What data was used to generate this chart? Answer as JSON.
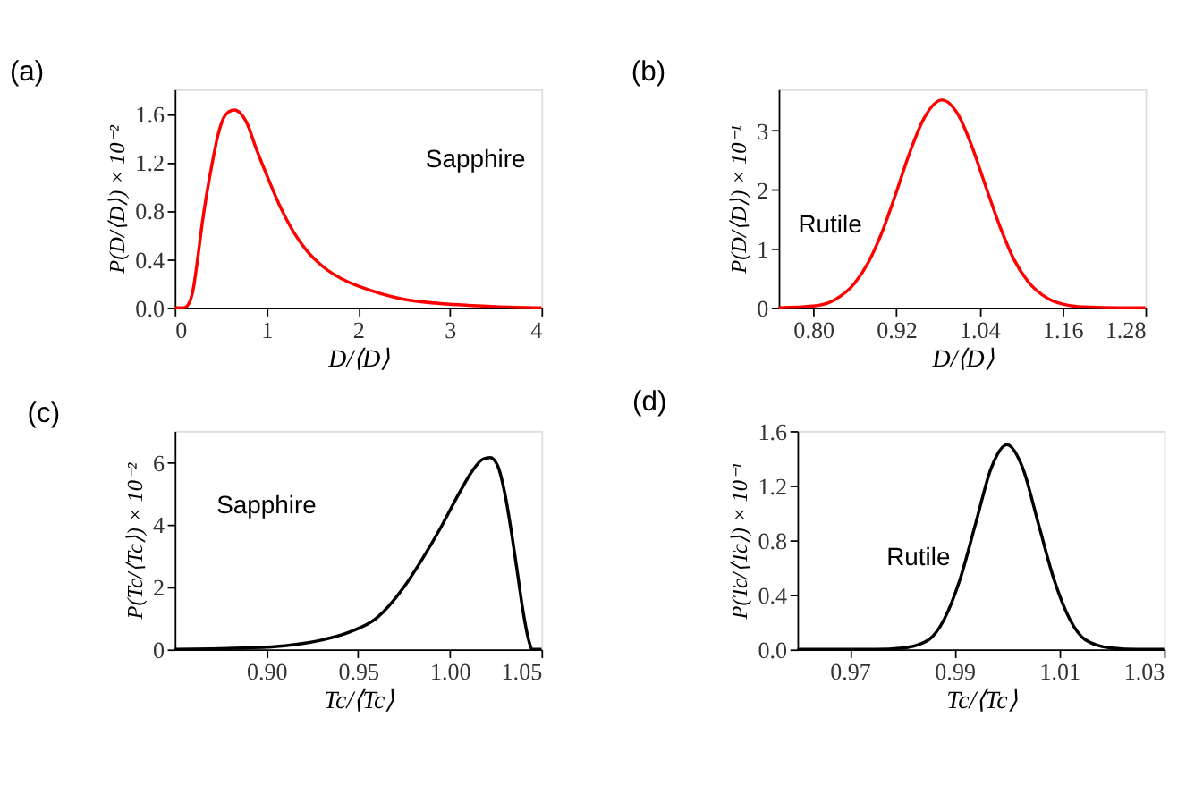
{
  "chart_data": [
    {
      "type": "line",
      "title": "(a)",
      "xlabel": "D/⟨D⟩",
      "ylabel": "P(D/⟨D⟩) × 10⁻²",
      "annotations": [
        "Sapphire"
      ],
      "xlim": [
        0,
        4
      ],
      "ylim": [
        0,
        1.8
      ],
      "xticks": [
        0,
        1,
        2,
        3,
        4
      ],
      "yticks": [
        {
          "value": 0,
          "label": "0.0"
        },
        0.4,
        0.8,
        1.2,
        1.6
      ],
      "grid": false,
      "series": [
        {
          "color": "#ff0000",
          "x": [
            0,
            0.1,
            0.15,
            0.2,
            0.24,
            0.3,
            0.34,
            0.41,
            0.47,
            0.53,
            0.6,
            0.65,
            0.72,
            0.8,
            0.87,
            1.0,
            1.14,
            1.3,
            1.43,
            1.6,
            1.9,
            2.0,
            2.5,
            3.0,
            3.5,
            4.0
          ],
          "values": [
            0,
            0,
            0.03,
            0.15,
            0.35,
            0.7,
            0.9,
            1.2,
            1.42,
            1.56,
            1.62,
            1.63,
            1.6,
            1.5,
            1.35,
            1.1,
            0.85,
            0.62,
            0.48,
            0.35,
            0.21,
            0.18,
            0.07,
            0.03,
            0.01,
            0
          ]
        }
      ]
    },
    {
      "type": "line",
      "title": "(b)",
      "xlabel": "D/⟨D⟩",
      "ylabel": "P(D/⟨D⟩) × 10⁻¹",
      "annotations": [
        "Rutile"
      ],
      "xlim": [
        0.75,
        1.28
      ],
      "ylim": [
        0,
        3.7
      ],
      "xticks": [
        {
          "value": 0.8,
          "label": "0.80"
        },
        0.92,
        1.04,
        1.16,
        1.28
      ],
      "yticks": [
        0,
        1,
        2,
        3
      ],
      "grid": false,
      "series": [
        {
          "color": "#ff0000",
          "x": [
            0.75,
            0.8,
            0.83,
            0.86,
            0.88,
            0.9,
            0.92,
            0.94,
            0.96,
            0.986,
            1.01,
            1.03,
            1.05,
            1.07,
            1.09,
            1.11,
            1.14,
            1.17,
            1.2,
            1.24,
            1.28
          ],
          "values": [
            0,
            0.03,
            0.13,
            0.42,
            0.78,
            1.3,
            1.96,
            2.65,
            3.21,
            3.52,
            3.26,
            2.71,
            2.03,
            1.37,
            0.82,
            0.45,
            0.15,
            0.04,
            0.01,
            0,
            0
          ]
        }
      ]
    },
    {
      "type": "line",
      "title": "(c)",
      "xlabel": "Tc/⟨Tc⟩",
      "ylabel": "P(Tc/⟨Tc⟩) × 10⁻²",
      "annotations": [
        "Sapphire"
      ],
      "xlim": [
        0.85,
        1.05
      ],
      "ylim": [
        0,
        7
      ],
      "xticks": [
        {
          "value": 0.9,
          "label": "0.90"
        },
        0.95,
        {
          "value": 1.0,
          "label": "1.00"
        },
        1.05
      ],
      "yticks": [
        0,
        2,
        4,
        6
      ],
      "grid": false,
      "series": [
        {
          "color": "#000000",
          "x": [
            0.85,
            0.87,
            0.89,
            0.91,
            0.93,
            0.945,
            0.96,
            0.975,
            0.985,
            0.995,
            1.005,
            1.012,
            1.018,
            1.022,
            1.026,
            1.03,
            1.034,
            1.037,
            1.04,
            1.043,
            1.045,
            1.05
          ],
          "values": [
            0,
            0.02,
            0.05,
            0.12,
            0.3,
            0.55,
            1.0,
            2.0,
            2.9,
            3.9,
            5.0,
            5.7,
            6.1,
            6.15,
            5.9,
            5.0,
            3.6,
            2.4,
            1.2,
            0.3,
            0,
            0
          ]
        }
      ]
    },
    {
      "type": "line",
      "title": "(d)",
      "xlabel": "Tc/⟨Tc⟩",
      "ylabel": "P(Tc/⟨Tc⟩) × 10⁻¹",
      "annotations": [
        "Rutile"
      ],
      "xlim": [
        0.96,
        1.03
      ],
      "ylim": [
        0,
        1.6
      ],
      "xticks": [
        0.97,
        0.99,
        1.01,
        1.03
      ],
      "yticks": [
        {
          "value": 0,
          "label": "0.0"
        },
        0.4,
        0.8,
        1.2,
        1.6
      ],
      "grid": false,
      "series": [
        {
          "color": "#000000",
          "x": [
            0.96,
            0.97,
            0.975,
            0.98,
            0.985,
            0.988,
            0.991,
            0.994,
            0.997,
            1.0,
            1.003,
            1.006,
            1.009,
            1.012,
            1.015,
            1.02,
            1.025,
            1.03
          ],
          "values": [
            0,
            0,
            0,
            0.01,
            0.07,
            0.22,
            0.51,
            0.92,
            1.33,
            1.5,
            1.33,
            0.92,
            0.51,
            0.22,
            0.07,
            0.01,
            0,
            0
          ]
        }
      ]
    }
  ]
}
